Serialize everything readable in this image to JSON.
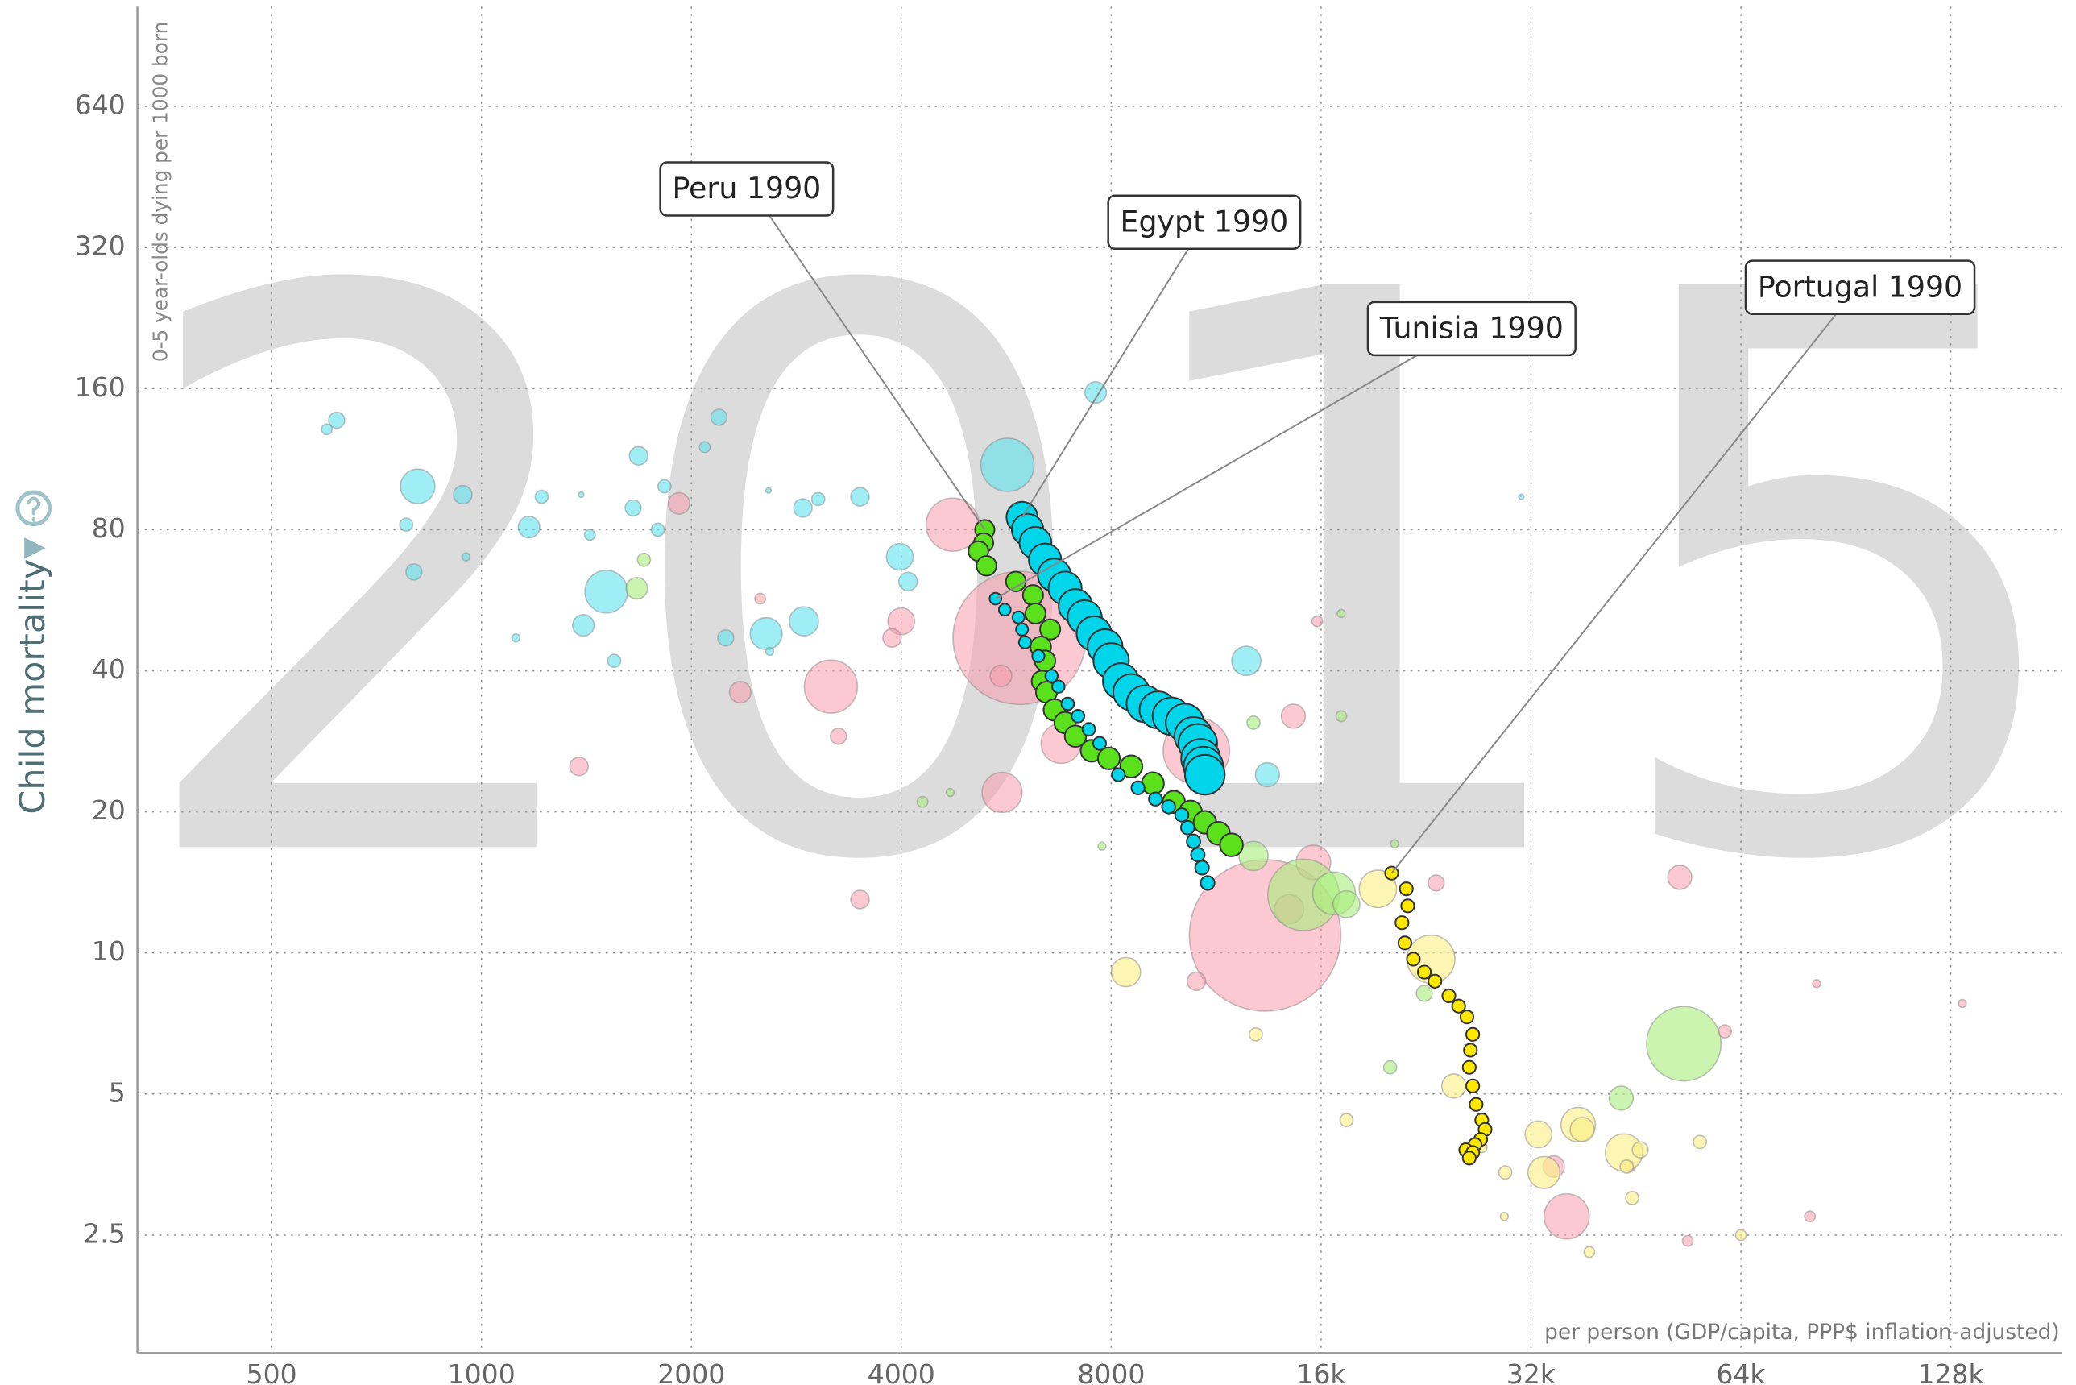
{
  "chart_data": {
    "type": "bubble",
    "year": "2015",
    "y_label": "Child mortality",
    "y_sublabel": "0-5 year-olds dying per 1000 born",
    "x_label": "per person (GDP/capita, PPP$ inflation-adjusted)",
    "xlog": true,
    "ylog": true,
    "grid": true,
    "xlim": [
      321,
      185000
    ],
    "ylim": [
      1.4,
      1045
    ],
    "xticks": [
      500,
      1000,
      2000,
      4000,
      8000,
      {
        "value": 16000,
        "label": "16k"
      },
      {
        "value": 32000,
        "label": "32k"
      },
      {
        "value": 64000,
        "label": "64k"
      },
      {
        "value": 128000,
        "label": "128k"
      }
    ],
    "yticks": [
      2.5,
      5,
      10,
      20,
      40,
      80,
      160,
      320,
      640
    ],
    "series": [
      {
        "color": "#5fe3f0",
        "opacity": 0.6,
        "x": [
          620,
          600,
          810,
          940,
          780,
          800,
          1170,
          1220,
          1430,
          950,
          1120,
          1390,
          1510,
          1400,
          1550,
          1650,
          1790,
          1680,
          1830,
          2090,
          2190,
          2580,
          2890,
          3040,
          3490,
          2560,
          2900,
          2240,
          2590,
          3980,
          4090,
          5680,
          7600,
          12500,
          13400,
          31000
        ],
        "values": [
          137,
          131,
          99,
          95,
          82,
          65,
          81,
          94,
          78,
          70,
          47,
          95,
          59,
          50,
          42,
          89,
          80,
          115,
          99,
          120,
          139,
          97,
          89,
          93,
          94,
          48,
          51,
          47,
          44,
          70,
          62,
          110,
          157,
          42,
          24,
          94
        ],
        "sizes": [
          15,
          6.7,
          70,
          20,
          10,
          15,
          27,
          10,
          6.7,
          3.7,
          3.7,
          1.7,
          107,
          27,
          10,
          15,
          10,
          20,
          10,
          6.7,
          15,
          1.7,
          20,
          10,
          20,
          60,
          50,
          15,
          3.7,
          42,
          20,
          166,
          27,
          50,
          34,
          1.7
        ]
      },
      {
        "color": "#f99aac",
        "opacity": 0.55,
        "x": [
          1920,
          4740,
          5910,
          3170,
          4000,
          3880,
          2350,
          2510,
          3250,
          1380,
          5580,
          6780,
          10600,
          13300,
          14400,
          15600,
          23400,
          52300,
          10600,
          36000,
          34500,
          44400,
          60700,
          53700,
          80400,
          82200,
          133000,
          14600,
          15800,
          3490,
          5560
        ],
        "values": [
          91,
          82,
          47,
          37,
          51,
          47,
          36,
          57,
          29,
          25,
          22,
          28,
          27,
          10.9,
          12.4,
          15.6,
          14.1,
          14.5,
          8.7,
          2.74,
          3.5,
          3.5,
          6.8,
          2.43,
          2.74,
          8.6,
          7.8,
          32,
          51,
          13,
          39
        ],
        "sizes": [
          27,
          166,
          1040,
          166,
          42,
          20,
          27,
          6.7,
          15,
          20,
          94,
          94,
          260,
          1350,
          50,
          70,
          15,
          34,
          20,
          120,
          27,
          6.7,
          10,
          6.7,
          6.7,
          3.7,
          3.7,
          34,
          6.7,
          20,
          27
        ]
      },
      {
        "color": "#a8ec7c",
        "opacity": 0.6,
        "x": [
          1710,
          1670,
          4290,
          4700,
          12800,
          15100,
          16700,
          17400,
          17100,
          12800,
          22500,
          20100,
          43100,
          53000,
          17100,
          20400,
          7760
        ],
        "values": [
          69,
          60,
          21,
          22,
          16.1,
          13.3,
          13.4,
          12.7,
          32,
          31,
          8.2,
          5.7,
          4.9,
          6.4,
          53,
          17.1,
          16.9
        ],
        "sizes": [
          10,
          27,
          6.7,
          3.7,
          50,
          300,
          107,
          42,
          6.7,
          10,
          15,
          10,
          34,
          326,
          3.7,
          3.7,
          3.7
        ]
      },
      {
        "color": "#fbef8a",
        "opacity": 0.65,
        "x": [
          8400,
          19300,
          23000,
          24800,
          32800,
          37400,
          37900,
          33400,
          43500,
          45900,
          43900,
          44700,
          55900,
          64000,
          38800,
          29400,
          17400,
          12900,
          29300,
          27200
        ],
        "values": [
          9.1,
          13.7,
          9.7,
          5.2,
          4.1,
          4.3,
          4.2,
          3.4,
          3.75,
          3.8,
          3.5,
          3.0,
          3.95,
          2.5,
          2.3,
          3.4,
          4.4,
          6.7,
          2.74,
          3.85
        ],
        "sizes": [
          50,
          82,
          135,
          34,
          42,
          70,
          34,
          60,
          82,
          15,
          10,
          10,
          10,
          6.7,
          6.7,
          10,
          10,
          10,
          3.7,
          6.7
        ]
      },
      {
        "label": "Peru 1990",
        "color": "#5be11c",
        "opacity": 1,
        "x": [
          5270,
          5250,
          5160,
          5300,
          5840,
          6180,
          6230,
          6540,
          6340,
          6430,
          6370,
          6460,
          6630,
          6870,
          7110,
          7500,
          7940,
          8550,
          9180,
          9840,
          10400,
          10900,
          11400,
          11900
        ],
        "values": [
          80,
          75,
          72,
          67,
          62,
          58,
          53,
          49,
          45,
          42,
          38,
          36,
          33,
          31,
          29,
          27,
          26,
          25,
          23,
          21,
          20,
          19,
          18,
          17
        ],
        "sizes": [
          22,
          22,
          23,
          23,
          23,
          24,
          24,
          24,
          25,
          25,
          26,
          26,
          27,
          27,
          27,
          28,
          28,
          29,
          29,
          29,
          30,
          30,
          31,
          31
        ]
      },
      {
        "label": "Tunisia 1990",
        "color": "#00d5e9",
        "opacity": 1,
        "x": [
          5460,
          5630,
          5890,
          5960,
          6020,
          6290,
          6570,
          6720,
          6930,
          7170,
          7430,
          7700,
          8190,
          8740,
          9260,
          9670,
          10100,
          10300,
          10500,
          10650,
          10800,
          11000
        ],
        "values": [
          57,
          54,
          52,
          49,
          46,
          43,
          39,
          37,
          34,
          32,
          30,
          28,
          24,
          22.5,
          21.3,
          20.5,
          19.7,
          18.5,
          17.3,
          16.2,
          15.2,
          14.1
        ],
        "sizes": [
          8.2,
          8.3,
          8.5,
          8.6,
          8.8,
          8.9,
          9.1,
          9.2,
          9.4,
          9.5,
          9.7,
          9.8,
          10.0,
          10.1,
          10.3,
          10.4,
          10.6,
          10.7,
          10.9,
          11.0,
          11.2,
          11.3
        ]
      },
      {
        "label": "Egypt 1990",
        "color": "#00d5e9",
        "opacity": 1,
        "x": [
          5960,
          6070,
          6230,
          6430,
          6630,
          6870,
          7110,
          7330,
          7560,
          7840,
          8000,
          8260,
          8550,
          8940,
          9340,
          9760,
          10200,
          10500,
          10650,
          10750,
          10850,
          10900
        ],
        "values": [
          85,
          80,
          75,
          69,
          64,
          60,
          55,
          52,
          48,
          45,
          42,
          38,
          36,
          34,
          33,
          32,
          31,
          29,
          28,
          26,
          25,
          24
        ],
        "sizes": [
          57,
          59,
          60,
          62,
          64,
          65,
          67,
          69,
          71,
          72,
          74,
          76,
          77,
          79,
          81,
          83,
          84,
          86,
          88,
          89,
          91,
          93
        ]
      },
      {
        "label": "Portugal 1990",
        "color": "#ffe800",
        "opacity": 1,
        "x": [
          20200,
          21200,
          21300,
          20900,
          21100,
          21700,
          22500,
          23300,
          24400,
          25200,
          25900,
          26400,
          26200,
          26100,
          26400,
          26700,
          27200,
          27500,
          27100,
          26600,
          25800,
          26400,
          26100
        ],
        "values": [
          14.8,
          13.7,
          12.6,
          11.6,
          10.5,
          9.7,
          9.1,
          8.7,
          8.1,
          7.7,
          7.3,
          6.7,
          6.2,
          5.7,
          5.2,
          4.75,
          4.4,
          4.2,
          4.0,
          3.9,
          3.8,
          3.75,
          3.65
        ],
        "sizes": [
          10,
          10,
          10,
          10,
          10,
          10,
          10,
          10,
          10,
          10,
          10,
          10,
          10,
          10,
          10,
          10,
          10,
          10,
          10,
          10,
          10,
          10,
          10
        ]
      }
    ]
  }
}
